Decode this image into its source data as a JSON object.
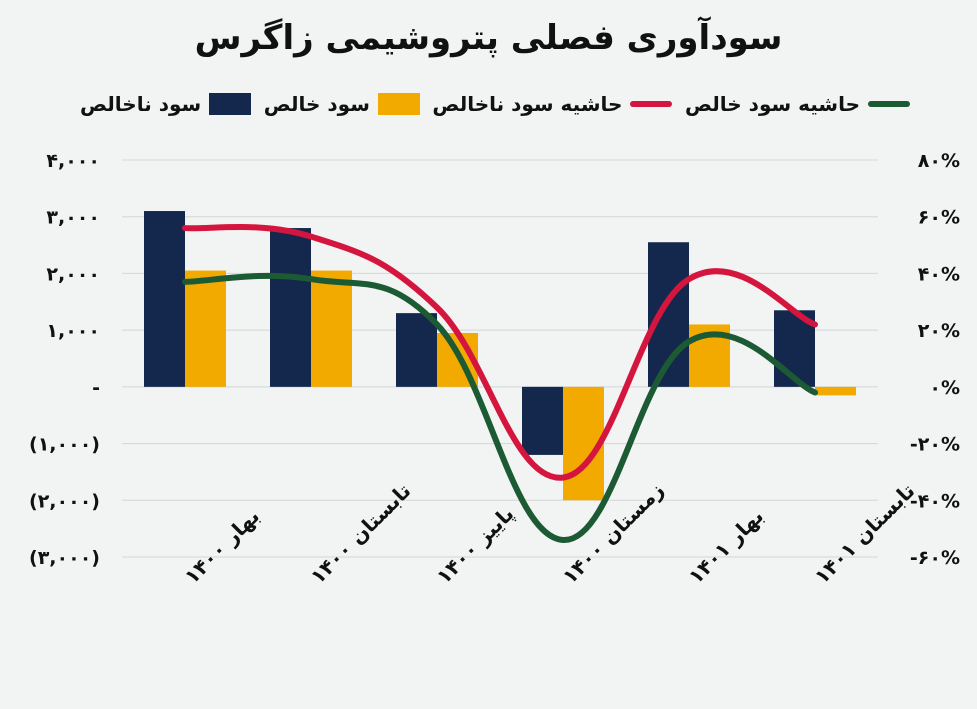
{
  "chart_data": {
    "type": "bar",
    "title": "سودآوری فصلی پتروشیمی زاگرس",
    "categories": [
      "بهار ۱۴۰۰",
      "تابستان ۱۴۰۰",
      "پاییز ۱۴۰۰",
      "زمستان ۱۴۰۰",
      "بهار ۱۴۰۱",
      "تابستان ۱۴۰۱"
    ],
    "series": [
      {
        "name": "سود ناخالص",
        "kind": "bar",
        "axis": "left",
        "color": "#13284c",
        "values": [
          3100,
          2800,
          1300,
          -1200,
          2550,
          1350
        ]
      },
      {
        "name": "سود خالص",
        "kind": "bar",
        "axis": "left",
        "color": "#f2a900",
        "values": [
          2050,
          2050,
          950,
          -2000,
          1100,
          -150
        ]
      },
      {
        "name": "حاشیه سود ناخالص",
        "kind": "line",
        "axis": "right",
        "color": "#d4163f",
        "values": [
          56,
          53,
          28,
          -32,
          38,
          22
        ]
      },
      {
        "name": "حاشیه سود خالص",
        "kind": "line",
        "axis": "right",
        "color": "#1c5a34",
        "values": [
          37,
          38,
          22,
          -54,
          16,
          -2
        ]
      }
    ],
    "ylim": [
      -3000,
      4000
    ],
    "y2lim": [
      -60,
      80
    ],
    "left_ticks": [
      {
        "value": 4000,
        "label": "۴,۰۰۰"
      },
      {
        "value": 3000,
        "label": "۳,۰۰۰"
      },
      {
        "value": 2000,
        "label": "۲,۰۰۰"
      },
      {
        "value": 1000,
        "label": "۱,۰۰۰"
      },
      {
        "value": 0,
        "label": "-"
      },
      {
        "value": -1000,
        "label": "(۱,۰۰۰)"
      },
      {
        "value": -2000,
        "label": "(۲,۰۰۰)"
      },
      {
        "value": -3000,
        "label": "(۳,۰۰۰)"
      }
    ],
    "right_ticks": [
      {
        "value": 80,
        "label": "۸۰%"
      },
      {
        "value": 60,
        "label": "۶۰%"
      },
      {
        "value": 40,
        "label": "۴۰%"
      },
      {
        "value": 20,
        "label": "۲۰%"
      },
      {
        "value": 0,
        "label": "۰%"
      },
      {
        "value": -20,
        "label": "-۲۰%"
      },
      {
        "value": -40,
        "label": "-۴۰%"
      },
      {
        "value": -60,
        "label": "-۶۰%"
      }
    ],
    "grid": true,
    "legend": "top"
  }
}
